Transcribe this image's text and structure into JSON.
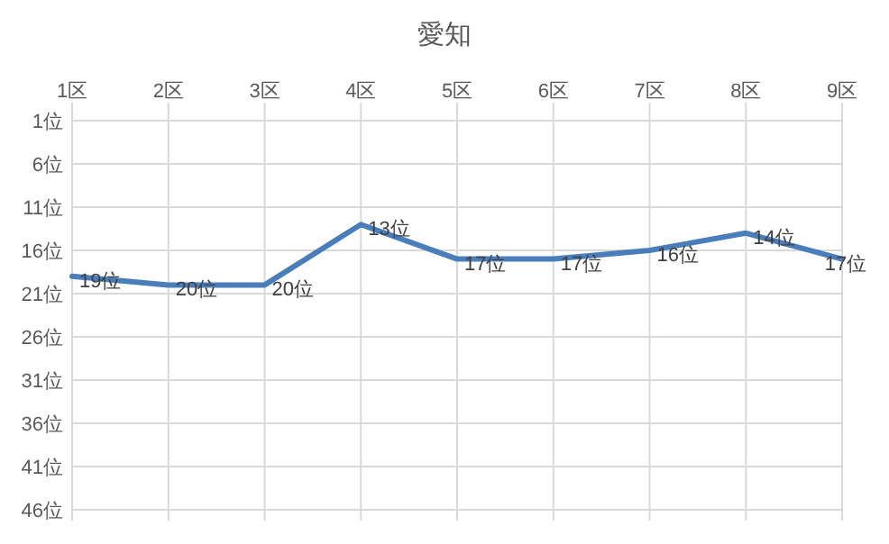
{
  "chart_data": {
    "type": "line",
    "title": "愛知",
    "categories": [
      "1区",
      "2区",
      "3区",
      "4区",
      "5区",
      "6区",
      "7区",
      "8区",
      "9区"
    ],
    "series": [
      {
        "color": "#4a7ebb",
        "values": [
          19,
          20,
          20,
          13,
          17,
          17,
          16,
          14,
          17
        ],
        "value_labels": [
          "19位",
          "20位",
          "20位",
          "13位",
          "17位",
          "17位",
          "16位",
          "14位",
          "17位"
        ]
      }
    ],
    "ylim": [
      46,
      1
    ],
    "yticks": [
      {
        "value": 1,
        "label": "1位"
      },
      {
        "value": 6,
        "label": "6位"
      },
      {
        "value": 11,
        "label": "11位"
      },
      {
        "value": 16,
        "label": "16位"
      },
      {
        "value": 21,
        "label": "21位"
      },
      {
        "value": 26,
        "label": "26位"
      },
      {
        "value": 31,
        "label": "31位"
      },
      {
        "value": 36,
        "label": "36位"
      },
      {
        "value": 41,
        "label": "41位"
      },
      {
        "value": 46,
        "label": "46位"
      }
    ],
    "grid": true,
    "line_style": "solid"
  }
}
